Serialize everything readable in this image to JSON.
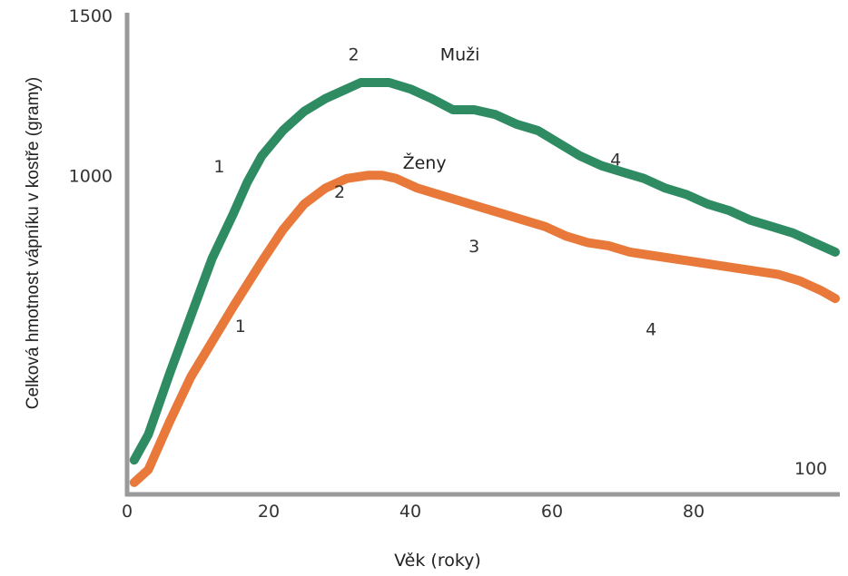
{
  "chart_data": {
    "type": "line",
    "xlabel": "Věk (roky)",
    "ylabel": "Celková hmotnost vápníku v kostře (gramy)",
    "xlim": [
      0,
      100
    ],
    "ylim": [
      0,
      1500
    ],
    "x_ticks": [
      {
        "value": 0,
        "label": "0"
      },
      {
        "value": 20,
        "label": "20"
      },
      {
        "value": 40,
        "label": "40"
      },
      {
        "value": 60,
        "label": "60"
      },
      {
        "value": 80,
        "label": "80"
      },
      {
        "value": 100,
        "label": "100"
      }
    ],
    "y_ticks": [
      {
        "value": 1000,
        "label": "1000"
      },
      {
        "value": 1500,
        "label": "1500"
      }
    ],
    "grid": false,
    "colors": {
      "men": "#2e8b62",
      "women": "#e8793a",
      "axis": "#999999"
    },
    "series": [
      {
        "name": "Muži",
        "color": "#2e8b62",
        "x": [
          1,
          3,
          6,
          9,
          12,
          15,
          17,
          19,
          22,
          25,
          28,
          31,
          33,
          35,
          37,
          40,
          43,
          46,
          49,
          52,
          55,
          58,
          61,
          64,
          67,
          70,
          73,
          76,
          79,
          82,
          85,
          88,
          91,
          94,
          97,
          100
        ],
        "y": [
          110,
          190,
          380,
          560,
          740,
          880,
          980,
          1060,
          1140,
          1200,
          1240,
          1270,
          1290,
          1290,
          1290,
          1270,
          1240,
          1205,
          1205,
          1190,
          1160,
          1140,
          1100,
          1060,
          1030,
          1010,
          990,
          960,
          940,
          910,
          890,
          860,
          840,
          820,
          790,
          760
        ]
      },
      {
        "name": "Ženy",
        "color": "#e8793a",
        "x": [
          1,
          3,
          6,
          9,
          12,
          15,
          17,
          19,
          22,
          25,
          28,
          31,
          34,
          36,
          38,
          41,
          44,
          47,
          50,
          53,
          56,
          59,
          62,
          65,
          68,
          71,
          74,
          77,
          80,
          83,
          86,
          89,
          92,
          95,
          98,
          100
        ],
        "y": [
          40,
          80,
          230,
          370,
          480,
          590,
          660,
          730,
          830,
          910,
          960,
          990,
          1000,
          1000,
          990,
          960,
          940,
          920,
          900,
          880,
          860,
          840,
          810,
          790,
          780,
          760,
          750,
          740,
          730,
          720,
          710,
          700,
          690,
          670,
          640,
          615
        ]
      }
    ],
    "series_labels": [
      {
        "text": "Muži",
        "x": 47,
        "y": 1360
      },
      {
        "text": "Ženy",
        "x": 42,
        "y": 1020
      }
    ],
    "annotations": [
      {
        "text": "1",
        "x": 13,
        "y": 1010
      },
      {
        "text": "2",
        "x": 32,
        "y": 1360
      },
      {
        "text": "4",
        "x": 69,
        "y": 1030
      },
      {
        "text": "1",
        "x": 16,
        "y": 510
      },
      {
        "text": "2",
        "x": 30,
        "y": 930
      },
      {
        "text": "3",
        "x": 49,
        "y": 760
      },
      {
        "text": "4",
        "x": 74,
        "y": 500
      }
    ]
  }
}
